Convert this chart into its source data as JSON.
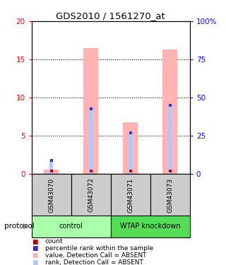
{
  "title": "GDS2010 / 1561270_at",
  "samples": [
    "GSM43070",
    "GSM43072",
    "GSM43071",
    "GSM43073"
  ],
  "bar_values": [
    0.5,
    16.5,
    6.7,
    16.3
  ],
  "rank_values": [
    1.7,
    8.5,
    5.3,
    9.0
  ],
  "count_values": [
    0.3,
    0.3,
    0.3,
    0.3
  ],
  "ylim_left": [
    0,
    20
  ],
  "ylim_right": [
    0,
    100
  ],
  "yticks_left": [
    0,
    5,
    10,
    15,
    20
  ],
  "yticks_right": [
    0,
    25,
    50,
    75,
    100
  ],
  "ytick_labels_right": [
    "0",
    "25",
    "50",
    "75",
    "100%"
  ],
  "bar_color": "#ffb3b3",
  "rank_bar_color": "#b3c6ff",
  "count_color": "#cc0000",
  "rank_dot_color": "#3333cc",
  "sample_box_color": "#cccccc",
  "control_color": "#aaffaa",
  "knockdown_color": "#55dd55",
  "legend_items": [
    {
      "color": "#cc0000",
      "label": "count"
    },
    {
      "color": "#3333cc",
      "label": "percentile rank within the sample"
    },
    {
      "color": "#ffb3b3",
      "label": "value, Detection Call = ABSENT"
    },
    {
      "color": "#b3c6ff",
      "label": "rank, Detection Call = ABSENT"
    }
  ]
}
